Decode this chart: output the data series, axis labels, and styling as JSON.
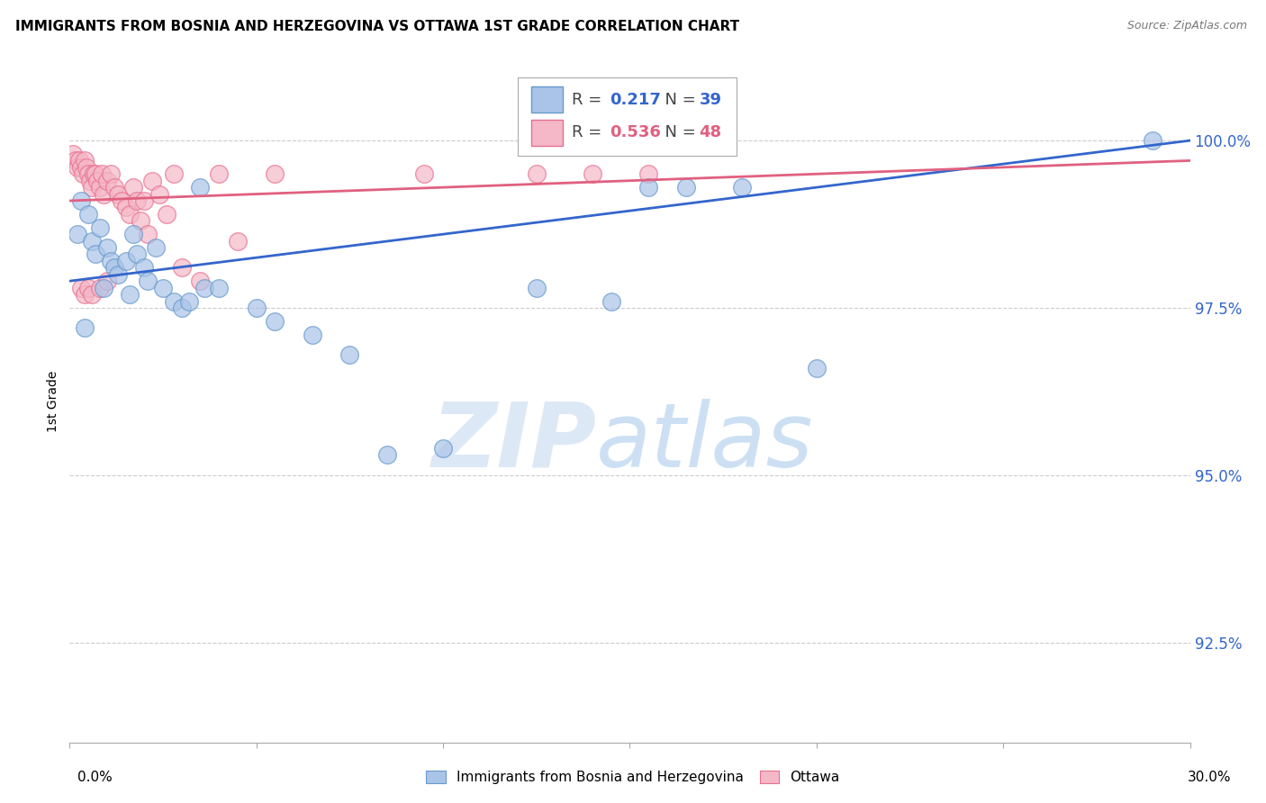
{
  "title": "IMMIGRANTS FROM BOSNIA AND HERZEGOVINA VS OTTAWA 1ST GRADE CORRELATION CHART",
  "source": "Source: ZipAtlas.com",
  "ylabel": "1st Grade",
  "xlim": [
    0.0,
    30.0
  ],
  "ylim": [
    91.0,
    101.2
  ],
  "yticks": [
    92.5,
    95.0,
    97.5,
    100.0
  ],
  "ytick_labels": [
    "92.5%",
    "95.0%",
    "97.5%",
    "100.0%"
  ],
  "legend_blue_r": "0.217",
  "legend_blue_n": "39",
  "legend_pink_r": "0.536",
  "legend_pink_n": "48",
  "blue_color": "#aac4e8",
  "pink_color": "#f4b8c8",
  "blue_edge_color": "#6699cc",
  "pink_edge_color": "#e87090",
  "blue_line_color": "#3366cc",
  "pink_line_color": "#e06080",
  "watermark_color": "#dce8f5",
  "blue_scatter_x": [
    0.2,
    0.3,
    0.5,
    0.6,
    0.7,
    0.8,
    0.9,
    1.0,
    1.1,
    1.2,
    1.3,
    1.5,
    1.6,
    1.7,
    1.8,
    2.0,
    2.1,
    2.3,
    2.5,
    2.8,
    3.0,
    3.2,
    3.5,
    3.6,
    4.0,
    5.0,
    5.5,
    6.5,
    7.5,
    8.5,
    10.0,
    12.5,
    14.5,
    15.5,
    16.5,
    18.0,
    20.0,
    0.4,
    29.0
  ],
  "blue_scatter_y": [
    98.6,
    99.1,
    98.9,
    98.5,
    98.3,
    98.7,
    97.8,
    98.4,
    98.2,
    98.1,
    98.0,
    98.2,
    97.7,
    98.6,
    98.3,
    98.1,
    97.9,
    98.4,
    97.8,
    97.6,
    97.5,
    97.6,
    99.3,
    97.8,
    97.8,
    97.5,
    97.3,
    97.1,
    96.8,
    95.3,
    95.4,
    97.8,
    97.6,
    99.3,
    99.3,
    99.3,
    96.6,
    97.2,
    100.0
  ],
  "pink_scatter_x": [
    0.1,
    0.15,
    0.2,
    0.25,
    0.3,
    0.35,
    0.4,
    0.45,
    0.5,
    0.55,
    0.6,
    0.65,
    0.7,
    0.75,
    0.8,
    0.85,
    0.9,
    1.0,
    1.1,
    1.2,
    1.3,
    1.4,
    1.5,
    1.6,
    1.7,
    1.8,
    1.9,
    2.0,
    2.1,
    2.2,
    2.4,
    2.6,
    2.8,
    3.0,
    3.5,
    4.0,
    4.5,
    5.5,
    9.5,
    12.5,
    14.0,
    15.5,
    0.3,
    0.4,
    0.5,
    0.6,
    0.8,
    1.0
  ],
  "pink_scatter_y": [
    99.8,
    99.7,
    99.6,
    99.7,
    99.6,
    99.5,
    99.7,
    99.6,
    99.5,
    99.4,
    99.3,
    99.5,
    99.5,
    99.4,
    99.3,
    99.5,
    99.2,
    99.4,
    99.5,
    99.3,
    99.2,
    99.1,
    99.0,
    98.9,
    99.3,
    99.1,
    98.8,
    99.1,
    98.6,
    99.4,
    99.2,
    98.9,
    99.5,
    98.1,
    97.9,
    99.5,
    98.5,
    99.5,
    99.5,
    99.5,
    99.5,
    99.5,
    97.8,
    97.7,
    97.8,
    97.7,
    97.8,
    97.9
  ],
  "blue_trendline_x": [
    0.0,
    30.0
  ],
  "blue_trendline_y": [
    97.9,
    100.0
  ],
  "pink_trendline_x": [
    0.0,
    30.0
  ],
  "pink_trendline_y": [
    99.1,
    99.7
  ]
}
